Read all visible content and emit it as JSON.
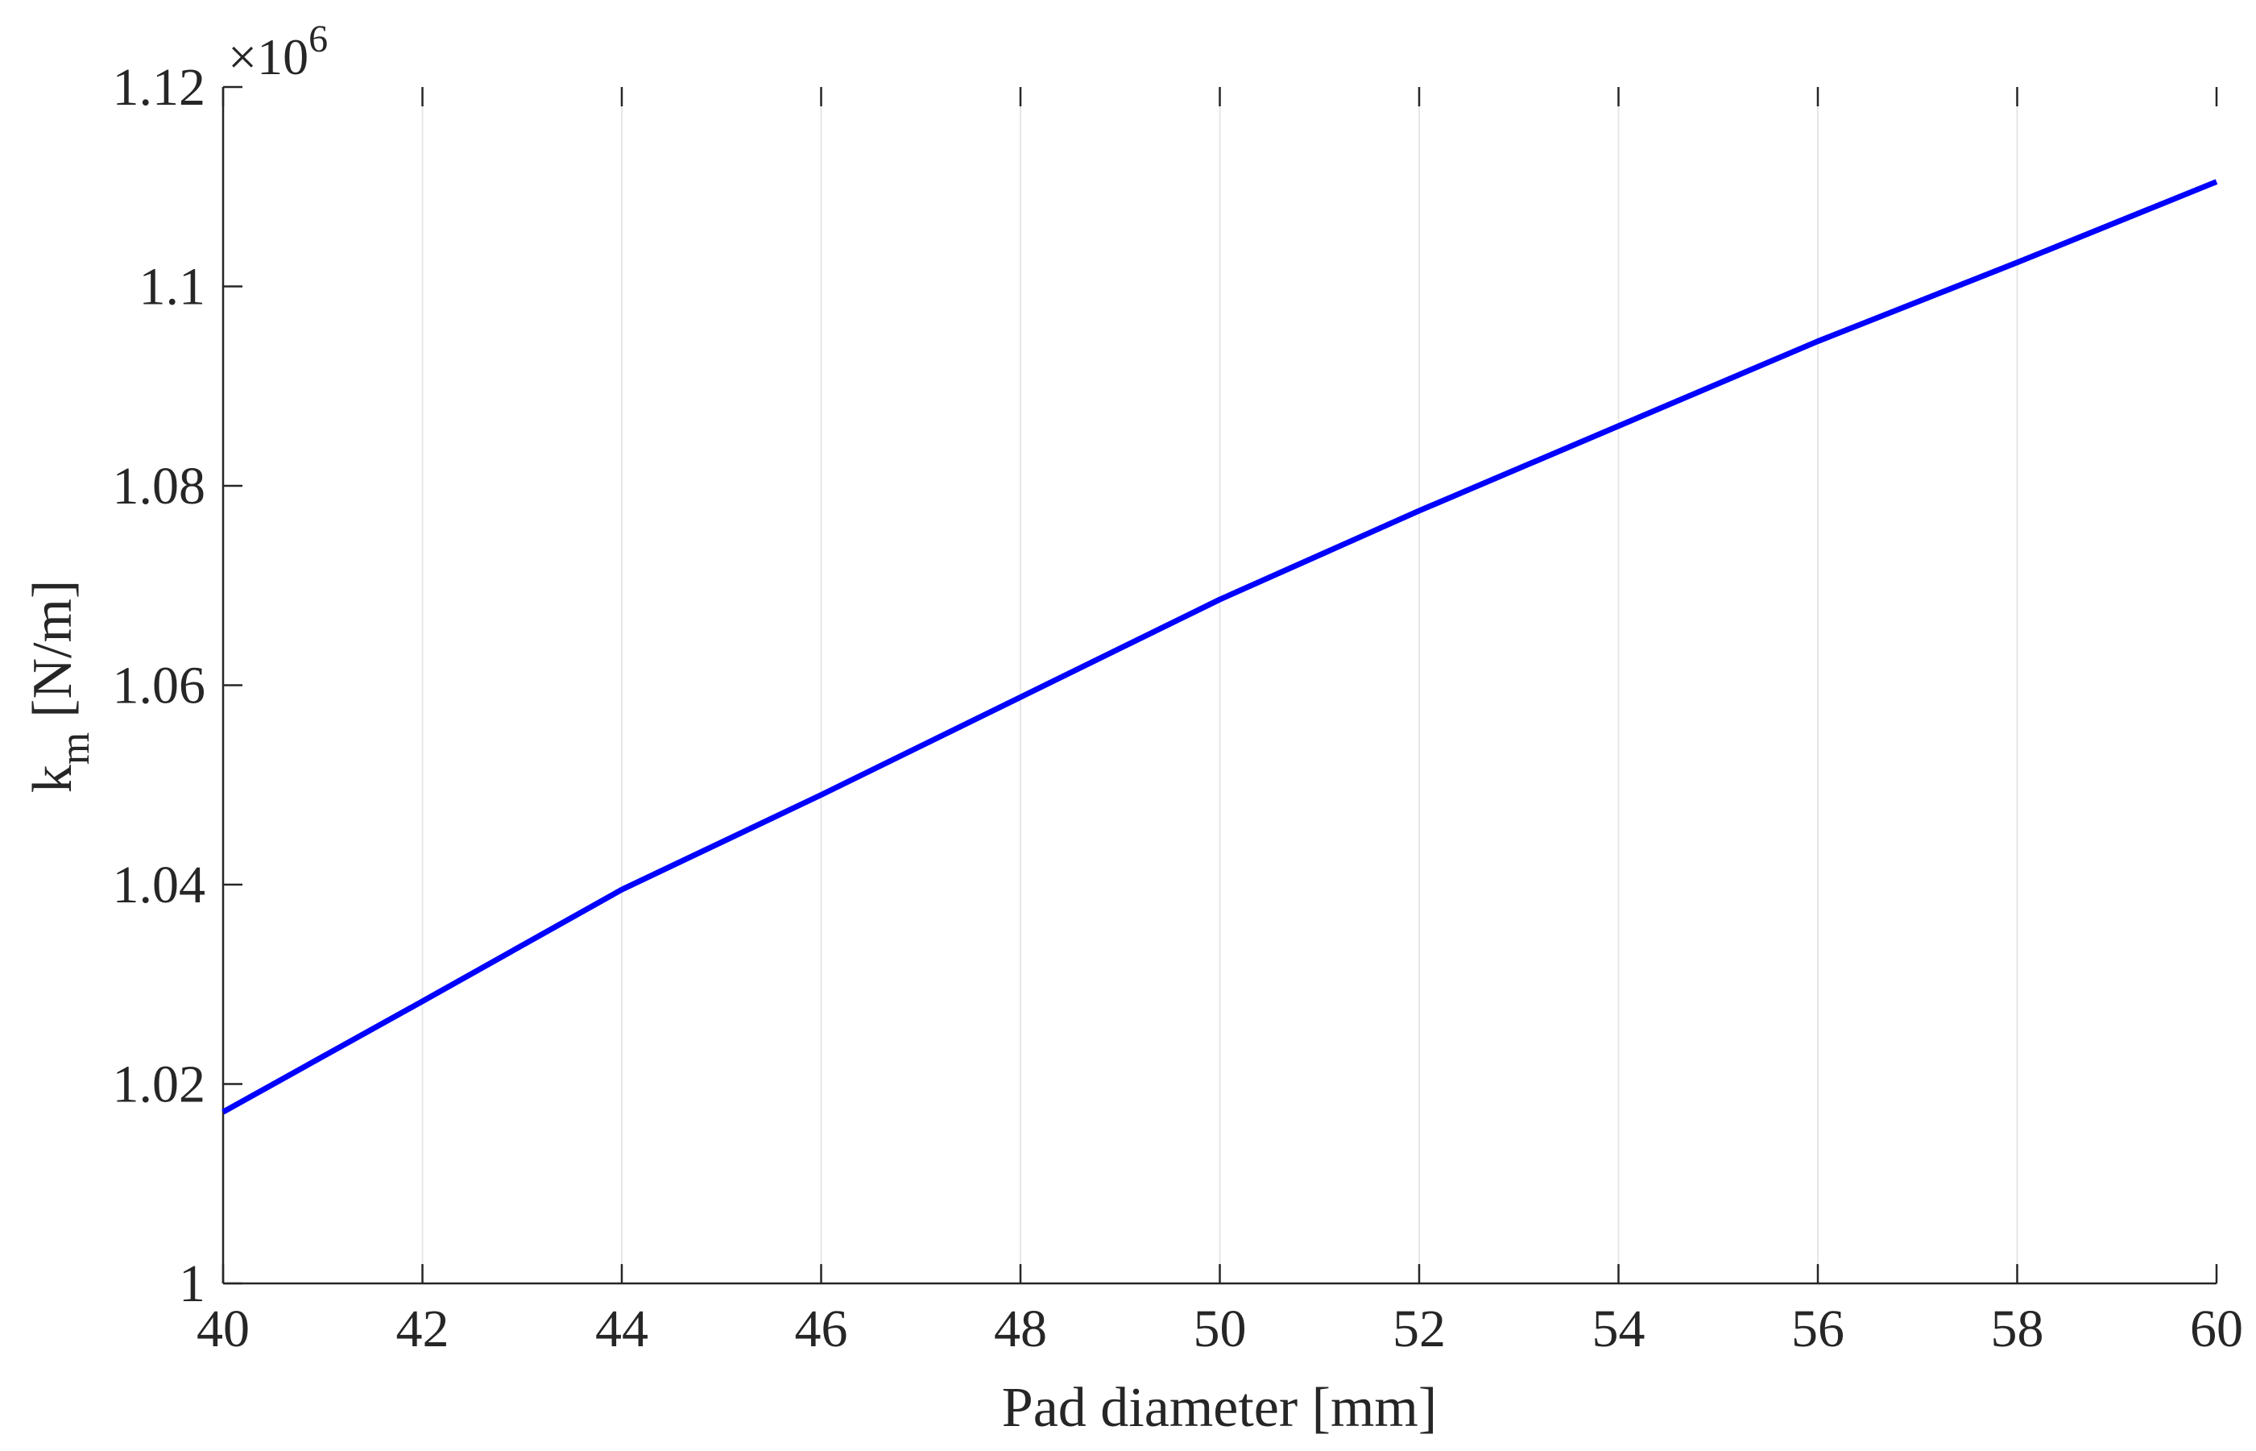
{
  "chart_data": {
    "type": "line",
    "title": "",
    "xlabel": "Pad diameter [mm]",
    "ylabel": "[N/m]",
    "ylabel_symbol": "k",
    "ylabel_subscript": "m",
    "y_multiplier_base": "×10",
    "y_multiplier_exponent": "6",
    "xlim": [
      40,
      60
    ],
    "ylim": [
      1.0,
      1.12
    ],
    "xticks": [
      40,
      42,
      44,
      46,
      48,
      50,
      52,
      54,
      56,
      58,
      60
    ],
    "xtick_labels": [
      "40",
      "42",
      "44",
      "46",
      "48",
      "50",
      "52",
      "54",
      "56",
      "58",
      "60"
    ],
    "yticks": [
      1.0,
      1.02,
      1.04,
      1.06,
      1.08,
      1.1,
      1.12
    ],
    "ytick_labels": [
      "1",
      "1.02",
      "1.04",
      "1.06",
      "1.08",
      "1.1",
      "1.12"
    ],
    "grid": "x",
    "series": [
      {
        "color": "#0000ff",
        "x": [
          40,
          42,
          44,
          46,
          48,
          50,
          52,
          54,
          56,
          58,
          60
        ],
        "y": [
          1.0172,
          1.0283,
          1.0395,
          1.049,
          1.0588,
          1.0686,
          1.0775,
          1.086,
          1.0945,
          1.1024,
          1.1105
        ]
      }
    ]
  }
}
